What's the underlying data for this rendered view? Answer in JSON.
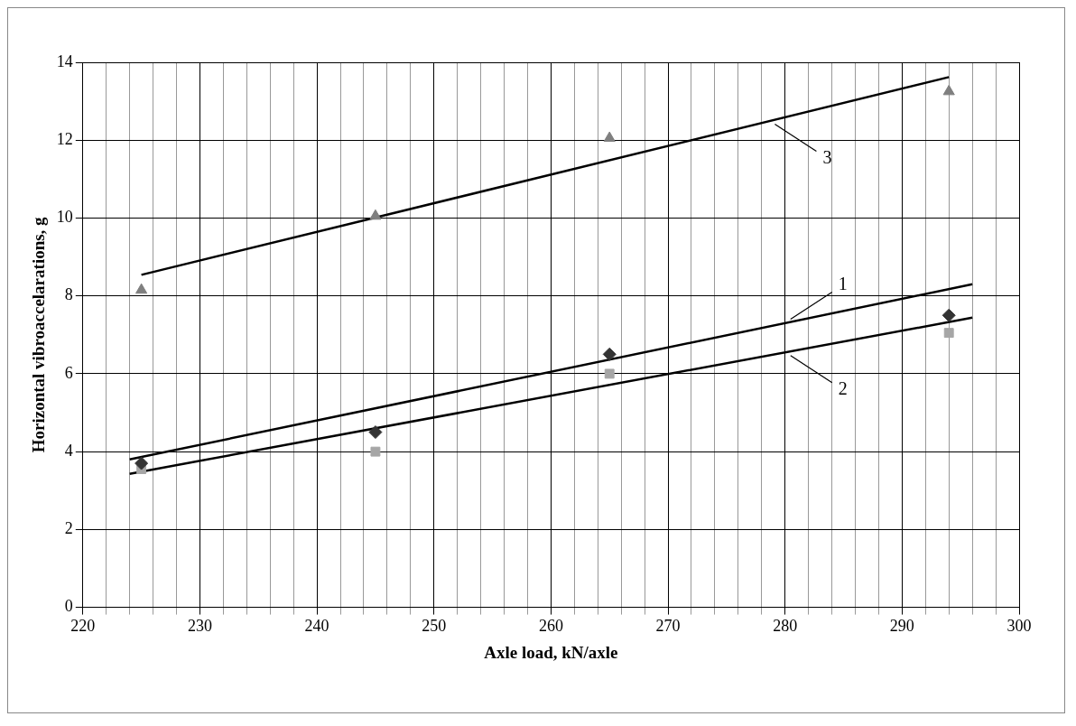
{
  "chart_data": {
    "type": "scatter",
    "xlabel": "Axle load, kN/axle",
    "ylabel": "Horizontal vibroaccelarations, g",
    "xlim": [
      220,
      300
    ],
    "ylim": [
      0,
      14
    ],
    "xticks": [
      220,
      {
        "value": 222,
        "label": null
      },
      {
        "value": 224,
        "label": null
      },
      {
        "value": 226,
        "label": null
      },
      {
        "value": 228,
        "label": null
      },
      230,
      {
        "value": 232,
        "label": null
      },
      {
        "value": 234,
        "label": null
      },
      {
        "value": 236,
        "label": null
      },
      {
        "value": 238,
        "label": null
      },
      240,
      {
        "value": 242,
        "label": null
      },
      {
        "value": 244,
        "label": null
      },
      {
        "value": 246,
        "label": null
      },
      {
        "value": 248,
        "label": null
      },
      250,
      {
        "value": 252,
        "label": null
      },
      {
        "value": 254,
        "label": null
      },
      {
        "value": 256,
        "label": null
      },
      {
        "value": 258,
        "label": null
      },
      260,
      {
        "value": 262,
        "label": null
      },
      {
        "value": 264,
        "label": null
      },
      {
        "value": 266,
        "label": null
      },
      {
        "value": 268,
        "label": null
      },
      270,
      {
        "value": 272,
        "label": null
      },
      {
        "value": 274,
        "label": null
      },
      {
        "value": 276,
        "label": null
      },
      {
        "value": 278,
        "label": null
      },
      280,
      {
        "value": 282,
        "label": null
      },
      {
        "value": 284,
        "label": null
      },
      {
        "value": 286,
        "label": null
      },
      {
        "value": 288,
        "label": null
      },
      290,
      {
        "value": 292,
        "label": null
      },
      {
        "value": 294,
        "label": null
      },
      {
        "value": 296,
        "label": null
      },
      {
        "value": 298,
        "label": null
      },
      300
    ],
    "yticks": [
      0,
      2,
      4,
      6,
      8,
      10,
      12,
      14
    ],
    "grid": true,
    "legend": false,
    "series": [
      {
        "type": "scatter",
        "color": "#333333",
        "marker": "diamond",
        "x": [
          225,
          245,
          265,
          294
        ],
        "values": [
          3.7,
          4.5,
          6.5,
          7.5
        ]
      },
      {
        "type": "scatter",
        "color": "#a6a6a6",
        "marker": "square",
        "x": [
          225,
          245,
          265,
          294
        ],
        "values": [
          3.55,
          4.0,
          6.0,
          7.05
        ]
      },
      {
        "type": "scatter",
        "color": "#7f7f7f",
        "marker": "triangle",
        "x": [
          225,
          245,
          265,
          294
        ],
        "values": [
          8.15,
          10.05,
          12.05,
          13.25
        ]
      },
      {
        "type": "line",
        "name": "1",
        "color": "#000000",
        "marker": "none",
        "x": [
          224,
          296
        ],
        "values": [
          3.8,
          8.3
        ]
      },
      {
        "type": "line",
        "name": "2",
        "color": "#000000",
        "marker": "none",
        "x": [
          224,
          296
        ],
        "values": [
          3.43,
          7.44
        ]
      },
      {
        "type": "line",
        "name": "3",
        "color": "#000000",
        "marker": "none",
        "x": [
          225,
          294
        ],
        "values": [
          8.54,
          13.62
        ]
      }
    ]
  }
}
